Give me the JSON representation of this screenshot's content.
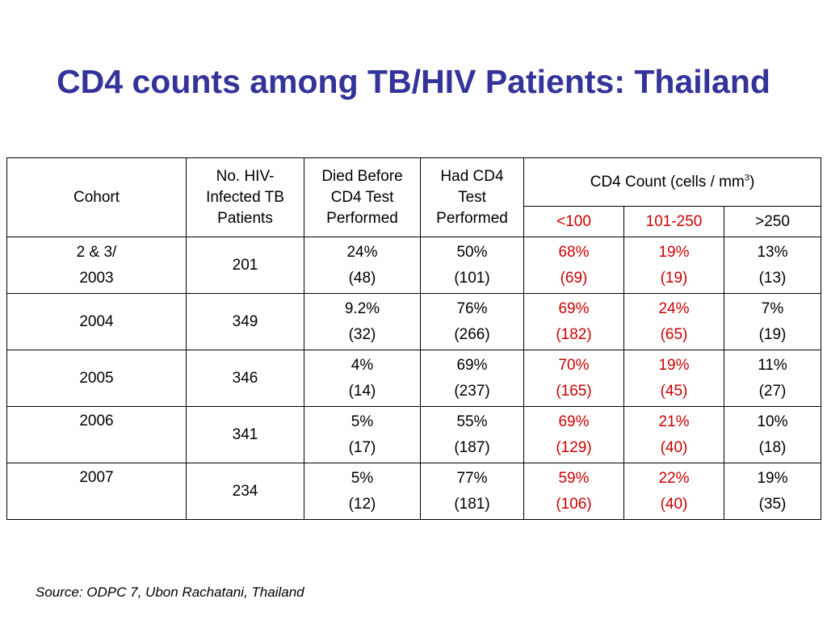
{
  "title": "CD4 counts among TB/HIV Patients: Thailand",
  "table": {
    "headers": {
      "cohort": "Cohort",
      "hiv_patients": "No. HIV-Infected TB Patients",
      "died_before": "Died Before CD4 Test Performed",
      "had_cd4": "Had CD4 Test Performed",
      "cd4_count": "CD4 Count (cells / mm",
      "cd4_count_sup": "3",
      "cd4_count_end": ")",
      "sub_lt100": "<100",
      "sub_101_250": "101-250",
      "sub_gt250": ">250"
    },
    "rows": [
      {
        "cohort": "2 & 3/",
        "cohort2": "2003",
        "hiv": "201",
        "died_pct": "24%",
        "died_n": "(48)",
        "had_pct": "50%",
        "had_n": "(101)",
        "lt100_pct": "68%",
        "lt100_n": "(69)",
        "mid_pct": "19%",
        "mid_n": "(19)",
        "gt250_pct": "13%",
        "gt250_n": "(13)"
      },
      {
        "cohort": "2004",
        "hiv": "349",
        "died_pct": "9.2%",
        "died_n": "(32)",
        "had_pct": "76%",
        "had_n": "(266)",
        "lt100_pct": "69%",
        "lt100_n": "(182)",
        "mid_pct": "24%",
        "mid_n": "(65)",
        "gt250_pct": "7%",
        "gt250_n": "(19)"
      },
      {
        "cohort": "2005",
        "hiv": "346",
        "died_pct": "4%",
        "died_n": "(14)",
        "had_pct": "69%",
        "had_n": "(237)",
        "lt100_pct": "70%",
        "lt100_n": "(165)",
        "mid_pct": "19%",
        "mid_n": "(45)",
        "gt250_pct": "11%",
        "gt250_n": "(27)"
      },
      {
        "cohort": "2006",
        "hiv": "341",
        "died_pct": "5%",
        "died_n": "(17)",
        "had_pct": "55%",
        "had_n": "(187)",
        "lt100_pct": "69%",
        "lt100_n": "(129)",
        "mid_pct": "21%",
        "mid_n": "(40)",
        "gt250_pct": "10%",
        "gt250_n": "(18)"
      },
      {
        "cohort": "2007",
        "hiv": "234",
        "died_pct": "5%",
        "died_n": "(12)",
        "had_pct": "77%",
        "had_n": "(181)",
        "lt100_pct": "59%",
        "lt100_n": "(106)",
        "mid_pct": "22%",
        "mid_n": "(40)",
        "gt250_pct": "19%",
        "gt250_n": "(35)"
      }
    ]
  },
  "source": "Source: ODPC 7, Ubon Rachatani, Thailand",
  "colors": {
    "title": "#333399",
    "highlight": "#cc0000",
    "text": "#000000"
  }
}
